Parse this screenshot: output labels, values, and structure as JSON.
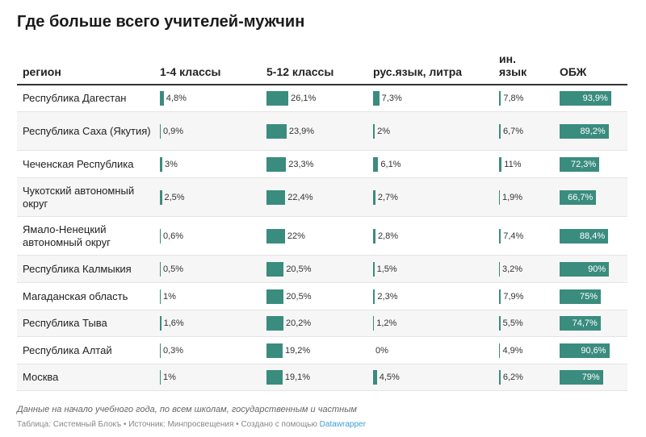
{
  "title": "Где больше всего учителей-мужчин",
  "columns": [
    "регион",
    "1-4 классы",
    "5-12 классы",
    "рус.язык, литра",
    "ин. язык",
    "ОБЖ"
  ],
  "bar_color": "#3a8c7e",
  "rows": [
    {
      "region": "Республика Дагестан",
      "v": [
        "4,8%",
        "26,1%",
        "7,3%",
        "7,8%",
        "93,9%"
      ],
      "n": [
        4.8,
        26.1,
        7.3,
        7.8,
        93.9
      ]
    },
    {
      "region": "Республика Саха (Якутия)",
      "v": [
        "0,9%",
        "23,9%",
        "2%",
        "6,7%",
        "89,2%"
      ],
      "n": [
        0.9,
        23.9,
        2,
        6.7,
        89.2
      ]
    },
    {
      "region": "Чеченская Республика",
      "v": [
        "3%",
        "23,3%",
        "6,1%",
        "11%",
        "72,3%"
      ],
      "n": [
        3,
        23.3,
        6.1,
        11,
        72.3
      ]
    },
    {
      "region": "Чукотский автономный округ",
      "v": [
        "2,5%",
        "22,4%",
        "2,7%",
        "1,9%",
        "66,7%"
      ],
      "n": [
        2.5,
        22.4,
        2.7,
        1.9,
        66.7
      ]
    },
    {
      "region": "Ямало-Ненецкий автономный округ",
      "v": [
        "0,6%",
        "22%",
        "2,8%",
        "7,4%",
        "88,4%"
      ],
      "n": [
        0.6,
        22,
        2.8,
        7.4,
        88.4
      ]
    },
    {
      "region": "Республика Калмыкия",
      "v": [
        "0,5%",
        "20,5%",
        "1,5%",
        "3,2%",
        "90%"
      ],
      "n": [
        0.5,
        20.5,
        1.5,
        3.2,
        90
      ]
    },
    {
      "region": "Магаданская область",
      "v": [
        "1%",
        "20,5%",
        "2,3%",
        "7,9%",
        "75%"
      ],
      "n": [
        1,
        20.5,
        2.3,
        7.9,
        75
      ]
    },
    {
      "region": "Республика Тыва",
      "v": [
        "1,6%",
        "20,2%",
        "1,2%",
        "5,5%",
        "74,7%"
      ],
      "n": [
        1.6,
        20.2,
        1.2,
        5.5,
        74.7
      ]
    },
    {
      "region": "Республика Алтай",
      "v": [
        "0,3%",
        "19,2%",
        "0%",
        "4,9%",
        "90,6%"
      ],
      "n": [
        0.3,
        19.2,
        0,
        4.9,
        90.6
      ]
    },
    {
      "region": "Москва",
      "v": [
        "1%",
        "19,1%",
        "4,5%",
        "6,2%",
        "79%"
      ],
      "n": [
        1,
        19.1,
        4.5,
        6.2,
        79
      ]
    }
  ],
  "note": "Данные на начало учебного года, по всем школам, государственным и частным",
  "footer": {
    "table": "Таблица: Системный Блокъ",
    "source": "Источник: Минпросвещения",
    "created": "Создано с помощью",
    "tool": "Datawrapper"
  }
}
